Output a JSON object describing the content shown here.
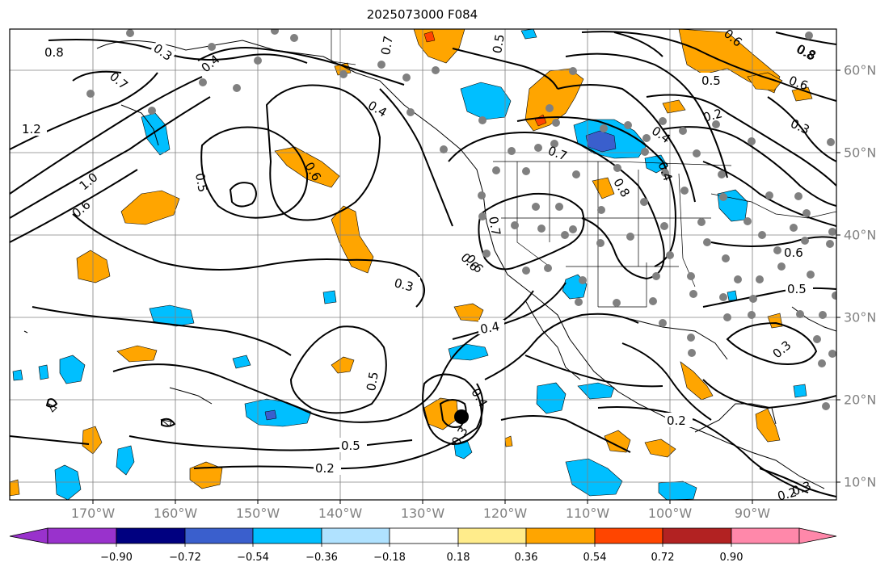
{
  "header": {
    "title": "2025073000 F084"
  },
  "axes": {
    "lon_labels": [
      "170°W",
      "160°W",
      "150°W",
      "140°W",
      "130°W",
      "120°W",
      "110°W",
      "100°W",
      "90°W"
    ],
    "lat_labels": [
      "60°N",
      "50°N",
      "40°N",
      "30°N",
      "20°N",
      "10°N"
    ],
    "grid_color": "#808080",
    "label_color": "#808080"
  },
  "colorbar": {
    "ticks": [
      "−0.90",
      "−0.72",
      "−0.54",
      "−0.36",
      "−0.18",
      "0.18",
      "0.36",
      "0.54",
      "0.72",
      "0.90"
    ],
    "colors": [
      "#9932cc",
      "#000080",
      "#3a5fcd",
      "#00bfff",
      "#b0e2ff",
      "#ffffff",
      "#ffec8b",
      "#ffa500",
      "#ff4500",
      "#b22222",
      "#ff88aa"
    ]
  },
  "contour_labels": [
    "0.8",
    "0.3",
    "0.4",
    "0.7",
    "0.5",
    "0.7",
    "0.8",
    "1.2",
    "0.4",
    "0.6",
    "1.0",
    "0.6",
    "0.5",
    "0.6",
    "0.3",
    "0.5",
    "0.4",
    "0.4",
    "0.3",
    "0.5",
    "0.2",
    "0.2",
    "0.3",
    "0.2",
    "0.6",
    "0.5",
    "0.4",
    "0.7",
    "0.6",
    "0.8",
    "0.7",
    "0.4",
    "0.5",
    "0.6",
    "0.2",
    "0.8",
    "0.6",
    "0.3",
    "0.3"
  ],
  "storm_marker": "tropical-cyclone-position"
}
